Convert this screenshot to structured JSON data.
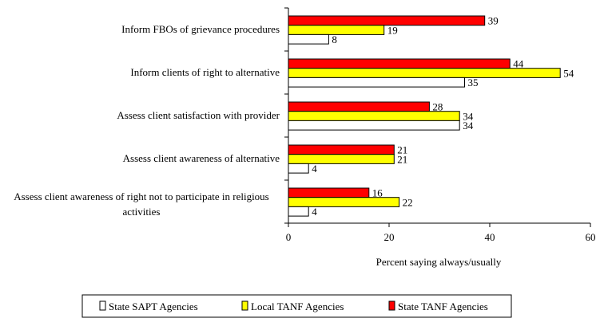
{
  "chart_data": {
    "type": "bar",
    "orientation": "horizontal",
    "categories": [
      "Inform FBOs of grievance procedures",
      "Inform clients of right to alternative",
      "Assess client satisfaction with provider",
      "Assess client awareness of alternative",
      "Assess client awareness of right not to participate in religious activities"
    ],
    "series": [
      {
        "name": "State TANF Agencies",
        "color": "#ff0000",
        "values": [
          39,
          44,
          28,
          21,
          16
        ]
      },
      {
        "name": "Local TANF Agencies",
        "color": "#ffff00",
        "values": [
          19,
          54,
          34,
          21,
          22
        ]
      },
      {
        "name": "State SAPT Agencies",
        "color": "#ffffff",
        "values": [
          8,
          35,
          34,
          4,
          4
        ]
      }
    ],
    "legend_order": [
      "State SAPT Agencies",
      "Local TANF Agencies",
      "State TANF Agencies"
    ],
    "xlabel": "Percent saying always/usually",
    "xlim": [
      0,
      60
    ],
    "xticks": [
      "0",
      "20",
      "40",
      "60"
    ],
    "grid": false,
    "legend_position": "bottom"
  }
}
